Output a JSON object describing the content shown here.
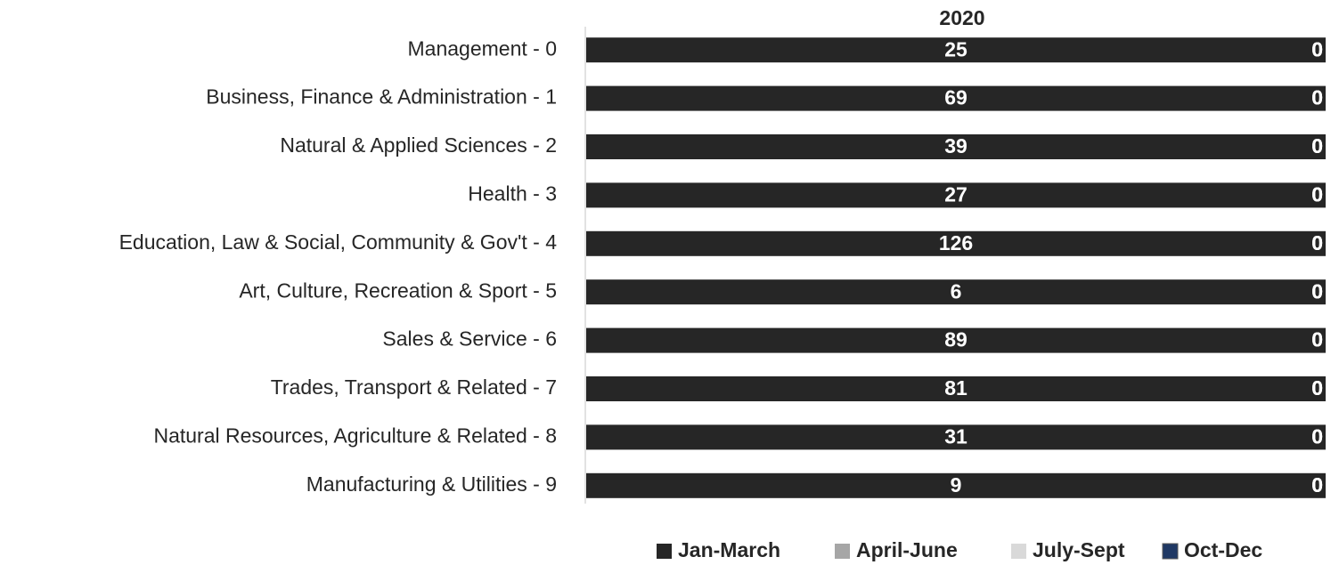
{
  "chart_data": {
    "type": "bar",
    "orientation": "horizontal",
    "stacked": "percent",
    "title": "2020",
    "categories": [
      "Management - 0",
      "Business, Finance & Administration - 1",
      "Natural & Applied Sciences - 2",
      "Health - 3",
      "Education, Law & Social, Community & Gov't - 4",
      "Art, Culture, Recreation & Sport - 5",
      "Sales & Service - 6",
      "Trades, Transport & Related - 7",
      "Natural Resources, Agriculture & Related - 8",
      "Manufacturing & Utilities - 9"
    ],
    "series": [
      {
        "name": "Jan-March",
        "color": "#262626",
        "values": [
          25,
          69,
          39,
          27,
          126,
          6,
          89,
          81,
          31,
          9
        ]
      },
      {
        "name": "April-June",
        "color": "#a6a6a6",
        "values": [
          0,
          0,
          0,
          0,
          0,
          0,
          0,
          0,
          0,
          0
        ]
      },
      {
        "name": "July-Sept",
        "color": "#d9d9d9",
        "values": [
          0,
          0,
          0,
          0,
          0,
          0,
          0,
          0,
          0,
          0
        ]
      },
      {
        "name": "Oct-Dec",
        "color": "#1f3864",
        "values": [
          0,
          0,
          0,
          0,
          0,
          0,
          0,
          0,
          0,
          0
        ]
      }
    ],
    "legend": "bottom",
    "data_labels": true
  }
}
